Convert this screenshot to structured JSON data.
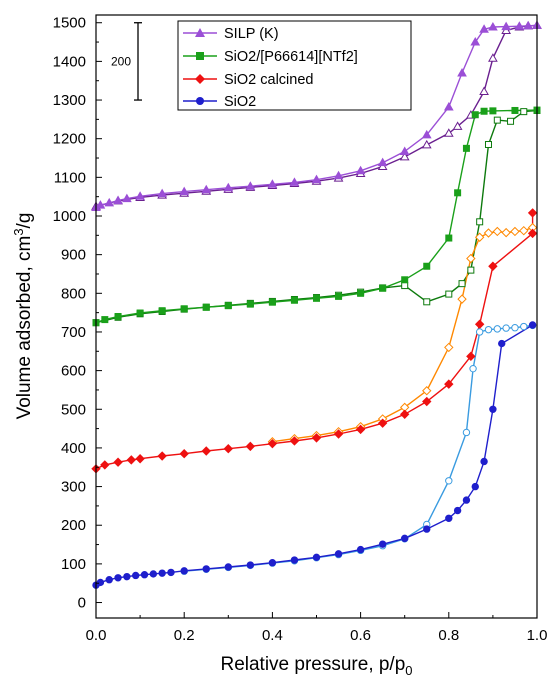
{
  "chart_data": {
    "type": "scatter",
    "xlabel": "Relative pressure, p/p",
    "xlabel_sub": "0",
    "ylabel_prefix": "Volume adsorbed, cm",
    "ylabel_sup": "3",
    "ylabel_suffix": "/g",
    "xlim": [
      0.0,
      1.0
    ],
    "ylim": [
      -40,
      1520
    ],
    "x_ticks": [
      0.0,
      0.2,
      0.4,
      0.6,
      0.8,
      1.0
    ],
    "x_tick_labels": [
      "0.0",
      "0.2",
      "0.4",
      "0.6",
      "0.8",
      "1.0"
    ],
    "y_ticks": [
      0,
      100,
      200,
      300,
      400,
      500,
      600,
      700,
      800,
      900,
      1000,
      1100,
      1200,
      1300,
      1400,
      1500
    ],
    "y_tick_labels": [
      "0",
      "100",
      "200",
      "300",
      "400",
      "500",
      "600",
      "700",
      "800",
      "900",
      "1000",
      "1100",
      "1200",
      "1300",
      "1400",
      "1500"
    ],
    "grid": false,
    "legend_position": "top-right",
    "scale_bar": {
      "label": "200",
      "length": 200,
      "y_from": 1300,
      "y_to": 1500
    },
    "series": [
      {
        "name": "SILP (K)",
        "color": "#9b4fd6",
        "desorption_color": "#6a1f8f",
        "marker": "triangle",
        "adsorption": {
          "x": [
            0.0,
            0.01,
            0.03,
            0.05,
            0.07,
            0.1,
            0.15,
            0.2,
            0.25,
            0.3,
            0.35,
            0.4,
            0.45,
            0.5,
            0.55,
            0.6,
            0.65,
            0.7,
            0.75,
            0.8,
            0.83,
            0.86,
            0.88,
            0.9,
            0.93,
            0.96,
            0.98,
            1.0
          ],
          "y": [
            1022,
            1028,
            1034,
            1040,
            1045,
            1051,
            1058,
            1063,
            1068,
            1073,
            1077,
            1082,
            1087,
            1094,
            1104,
            1117,
            1138,
            1167,
            1210,
            1282,
            1370,
            1450,
            1483,
            1489,
            1490,
            1491,
            1492,
            1493
          ]
        },
        "desorption": {
          "x": [
            1.0,
            0.98,
            0.96,
            0.93,
            0.9,
            0.88,
            0.85,
            0.82,
            0.8,
            0.75,
            0.7,
            0.65,
            0.6,
            0.55,
            0.5,
            0.45,
            0.4,
            0.35,
            0.3,
            0.25,
            0.2,
            0.15,
            0.1,
            0.05,
            0.0
          ],
          "y": [
            1493,
            1492,
            1489,
            1480,
            1408,
            1322,
            1261,
            1232,
            1214,
            1184,
            1153,
            1128,
            1110,
            1098,
            1090,
            1084,
            1079,
            1074,
            1069,
            1064,
            1059,
            1054,
            1048,
            1039,
            1025
          ]
        }
      },
      {
        "name": "SiO2/[P66614][NTf2]",
        "color": "#1aa01a",
        "desorption_color": "#0d7a0d",
        "marker": "square",
        "adsorption": {
          "x": [
            0.0,
            0.02,
            0.05,
            0.1,
            0.15,
            0.2,
            0.25,
            0.3,
            0.35,
            0.4,
            0.45,
            0.5,
            0.55,
            0.6,
            0.65,
            0.7,
            0.75,
            0.8,
            0.82,
            0.84,
            0.86,
            0.88,
            0.9,
            0.95,
            1.0
          ],
          "y": [
            724,
            732,
            740,
            749,
            755,
            760,
            764,
            768,
            772,
            777,
            782,
            787,
            792,
            800,
            813,
            835,
            870,
            943,
            1060,
            1175,
            1262,
            1271,
            1272,
            1273,
            1274
          ]
        },
        "desorption": {
          "x": [
            1.0,
            0.97,
            0.94,
            0.91,
            0.89,
            0.87,
            0.85,
            0.83,
            0.8,
            0.75,
            0.7,
            0.65,
            0.6,
            0.55,
            0.5,
            0.45,
            0.4,
            0.35,
            0.3,
            0.25,
            0.2,
            0.15,
            0.1,
            0.05,
            0.0
          ],
          "y": [
            1273,
            1270,
            1245,
            1248,
            1185,
            985,
            860,
            825,
            798,
            778,
            820,
            814,
            803,
            795,
            789,
            784,
            779,
            774,
            769,
            764,
            759,
            753,
            747,
            738,
            724
          ]
        }
      },
      {
        "name": "SiO2 calcined",
        "color": "#ee1111",
        "desorption_color": "#ff8800",
        "marker": "diamond",
        "adsorption": {
          "x": [
            0.0,
            0.02,
            0.05,
            0.08,
            0.1,
            0.15,
            0.2,
            0.25,
            0.3,
            0.35,
            0.4,
            0.45,
            0.5,
            0.55,
            0.6,
            0.65,
            0.7,
            0.75,
            0.8,
            0.85,
            0.87,
            0.9,
            0.99,
            0.99
          ],
          "y": [
            346,
            356,
            363,
            369,
            372,
            379,
            385,
            392,
            398,
            404,
            411,
            418,
            426,
            436,
            448,
            464,
            487,
            520,
            565,
            637,
            720,
            870,
            955,
            1008
          ]
        },
        "desorption": {
          "x": [
            0.99,
            0.97,
            0.95,
            0.93,
            0.91,
            0.89,
            0.87,
            0.85,
            0.83,
            0.8,
            0.75,
            0.7,
            0.65,
            0.6,
            0.55,
            0.5,
            0.45,
            0.4
          ],
          "y": [
            970,
            962,
            960,
            957,
            960,
            956,
            945,
            890,
            785,
            660,
            548,
            505,
            475,
            455,
            442,
            432,
            424,
            416
          ]
        }
      },
      {
        "name": "SiO2",
        "color": "#1f1fcc",
        "desorption_color": "#3a9be0",
        "marker": "circle",
        "adsorption": {
          "x": [
            0.0,
            0.01,
            0.03,
            0.05,
            0.07,
            0.09,
            0.11,
            0.13,
            0.15,
            0.17,
            0.2,
            0.25,
            0.3,
            0.35,
            0.4,
            0.45,
            0.5,
            0.55,
            0.6,
            0.65,
            0.7,
            0.75,
            0.8,
            0.82,
            0.84,
            0.86,
            0.88,
            0.9,
            0.92,
            0.99
          ],
          "y": [
            45,
            52,
            59,
            64,
            67,
            70,
            72,
            74,
            76,
            78,
            82,
            87,
            92,
            97,
            103,
            110,
            117,
            126,
            137,
            151,
            166,
            190,
            218,
            238,
            265,
            300,
            365,
            500,
            670,
            718
          ]
        },
        "desorption": {
          "x": [
            0.99,
            0.97,
            0.95,
            0.93,
            0.91,
            0.89,
            0.87,
            0.855,
            0.84,
            0.8,
            0.75,
            0.7,
            0.65,
            0.6,
            0.55,
            0.5,
            0.45,
            0.4,
            0.35,
            0.3,
            0.25,
            0.2
          ],
          "y": [
            717,
            714,
            711,
            710,
            708,
            706,
            700,
            605,
            440,
            315,
            202,
            165,
            147,
            135,
            124,
            116,
            108,
            102,
            96,
            91,
            86,
            81
          ]
        }
      }
    ]
  }
}
